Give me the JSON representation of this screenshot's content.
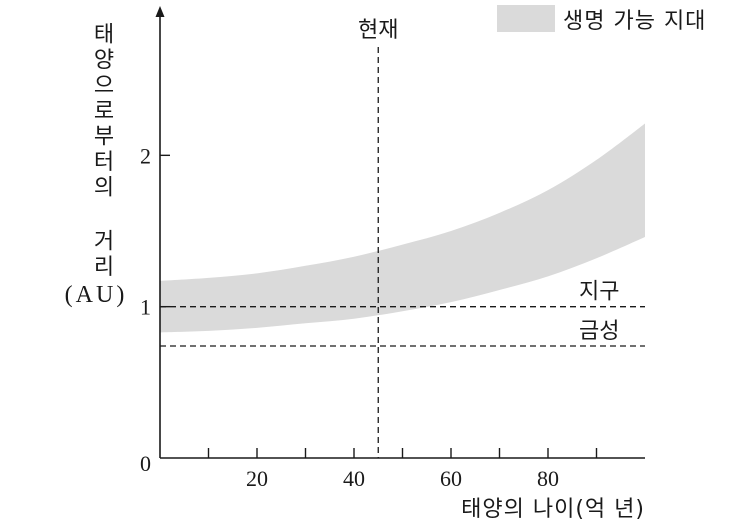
{
  "chart_data": {
    "type": "area",
    "xlabel": "태양의 나이(억 년)",
    "ylabel": "태양으로부터의 거리",
    "yunit": "(AU)",
    "xlim": [
      0,
      100
    ],
    "ylim": [
      0,
      3
    ],
    "grid": false,
    "legend": "top-right",
    "x_ticks": [
      20,
      40,
      60,
      80
    ],
    "x_tick_marks": [
      10,
      20,
      30,
      40,
      50,
      60,
      70,
      80,
      90
    ],
    "y_ticks": [
      0,
      1,
      2
    ],
    "x": [
      0,
      10,
      20,
      30,
      40,
      50,
      60,
      70,
      80,
      90,
      100
    ],
    "series": [
      {
        "name": "생명 가능 지대",
        "color": "#dadada",
        "lower": [
          0.83,
          0.84,
          0.86,
          0.89,
          0.92,
          0.97,
          1.03,
          1.11,
          1.2,
          1.32,
          1.46
        ],
        "upper": [
          1.17,
          1.19,
          1.22,
          1.27,
          1.33,
          1.41,
          1.5,
          1.62,
          1.77,
          1.97,
          2.21
        ]
      }
    ],
    "reference_lines": {
      "vertical": [
        {
          "x": 45,
          "label": "현재"
        }
      ],
      "horizontal": [
        {
          "y": 1,
          "label": "지구"
        },
        {
          "y": 0.74,
          "label": "금성"
        }
      ]
    }
  }
}
